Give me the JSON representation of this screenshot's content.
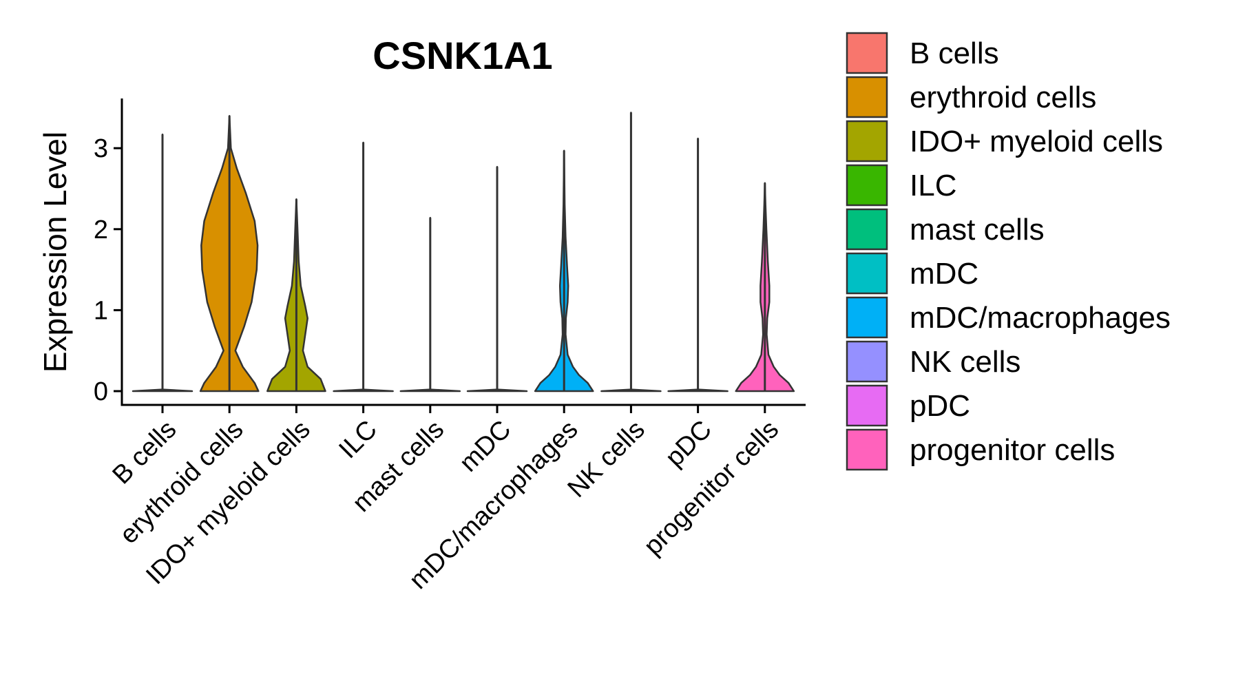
{
  "chart_data": {
    "type": "violin",
    "title": "CSNK1A1",
    "ylabel": "Expression Level",
    "xlabel": "",
    "ylim": [
      -0.18,
      3.65
    ],
    "yticks": [
      0,
      1,
      2,
      3
    ],
    "grid": false,
    "legend_position": "right",
    "categories": [
      "B cells",
      "erythroid cells",
      "IDO+ myeloid cells",
      "ILC",
      "mast cells",
      "mDC",
      "mDC/macrophages",
      "NK cells",
      "pDC",
      "progenitor cells"
    ],
    "colors": [
      "#F8766D",
      "#D89000",
      "#A3A500",
      "#39B600",
      "#00BF7D",
      "#00BFC4",
      "#00B0F6",
      "#9590FF",
      "#E76BF3",
      "#FF62BC"
    ],
    "max_values": [
      3.17,
      3.4,
      2.37,
      3.07,
      2.14,
      2.77,
      2.97,
      3.44,
      3.12,
      2.57
    ],
    "density_profiles": [
      [
        [
          0.0,
          1.0
        ],
        [
          0.02,
          0.0
        ],
        [
          3.17,
          0.0
        ]
      ],
      [
        [
          0.0,
          0.98
        ],
        [
          0.1,
          0.85
        ],
        [
          0.3,
          0.45
        ],
        [
          0.5,
          0.2
        ],
        [
          0.6,
          0.3
        ],
        [
          0.8,
          0.5
        ],
        [
          1.1,
          0.75
        ],
        [
          1.5,
          0.92
        ],
        [
          1.8,
          0.95
        ],
        [
          2.1,
          0.85
        ],
        [
          2.45,
          0.55
        ],
        [
          2.75,
          0.25
        ],
        [
          3.0,
          0.05
        ],
        [
          3.4,
          0.0
        ]
      ],
      [
        [
          0.0,
          0.98
        ],
        [
          0.15,
          0.82
        ],
        [
          0.3,
          0.38
        ],
        [
          0.5,
          0.22
        ],
        [
          0.7,
          0.3
        ],
        [
          0.9,
          0.38
        ],
        [
          1.05,
          0.3
        ],
        [
          1.3,
          0.15
        ],
        [
          1.6,
          0.08
        ],
        [
          2.0,
          0.04
        ],
        [
          2.37,
          0.0
        ]
      ],
      [
        [
          0.0,
          1.0
        ],
        [
          0.02,
          0.0
        ],
        [
          3.07,
          0.0
        ]
      ],
      [
        [
          0.0,
          1.0
        ],
        [
          0.02,
          0.0
        ],
        [
          2.14,
          0.0
        ]
      ],
      [
        [
          0.0,
          1.0
        ],
        [
          0.02,
          0.0
        ],
        [
          2.77,
          0.0
        ]
      ],
      [
        [
          0.0,
          0.98
        ],
        [
          0.1,
          0.8
        ],
        [
          0.2,
          0.5
        ],
        [
          0.3,
          0.3
        ],
        [
          0.45,
          0.12
        ],
        [
          0.7,
          0.05
        ],
        [
          0.9,
          0.06
        ],
        [
          1.1,
          0.12
        ],
        [
          1.3,
          0.14
        ],
        [
          1.55,
          0.1
        ],
        [
          1.9,
          0.05
        ],
        [
          2.3,
          0.02
        ],
        [
          2.97,
          0.0
        ]
      ],
      [
        [
          0.0,
          1.0
        ],
        [
          0.02,
          0.0
        ],
        [
          3.44,
          0.0
        ]
      ],
      [
        [
          0.0,
          1.0
        ],
        [
          0.02,
          0.0
        ],
        [
          3.12,
          0.0
        ]
      ],
      [
        [
          0.0,
          0.98
        ],
        [
          0.1,
          0.8
        ],
        [
          0.2,
          0.5
        ],
        [
          0.3,
          0.3
        ],
        [
          0.45,
          0.12
        ],
        [
          0.7,
          0.06
        ],
        [
          0.9,
          0.08
        ],
        [
          1.1,
          0.15
        ],
        [
          1.3,
          0.15
        ],
        [
          1.6,
          0.1
        ],
        [
          2.0,
          0.05
        ],
        [
          2.3,
          0.02
        ],
        [
          2.57,
          0.0
        ]
      ]
    ]
  }
}
